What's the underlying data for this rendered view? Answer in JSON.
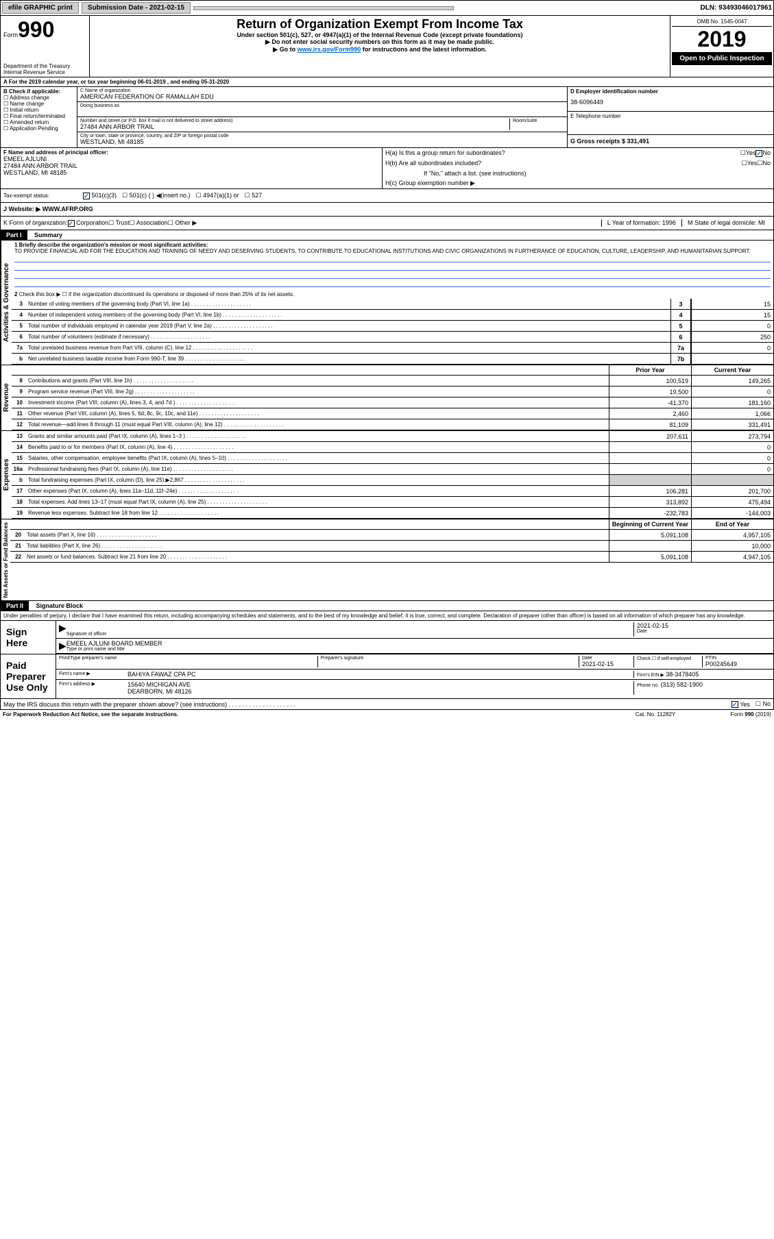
{
  "topbar": {
    "efile": "efile GRAPHIC print",
    "submission_label": "Submission Date - 2021-02-15",
    "dln": "DLN: 93493046017961"
  },
  "header": {
    "form_label": "Form",
    "form_num": "990",
    "dept": "Department of the Treasury",
    "irs": "Internal Revenue Service",
    "title": "Return of Organization Exempt From Income Tax",
    "sub1": "Under section 501(c), 527, or 4947(a)(1) of the Internal Revenue Code (except private foundations)",
    "sub2": "▶ Do not enter social security numbers on this form as it may be made public.",
    "sub3": "▶ Go to www.irs.gov/Form990 for instructions and the latest information.",
    "omb": "OMB No. 1545-0047",
    "year": "2019",
    "open": "Open to Public Inspection"
  },
  "period": "A For the 2019 calendar year, or tax year beginning 06-01-2019    , and ending 05-31-2020",
  "boxB": {
    "label": "B Check if applicable:",
    "items": [
      "Address change",
      "Name change",
      "Initial return",
      "Final return/terminated",
      "Amended return",
      "Application Pending"
    ]
  },
  "boxC": {
    "name_label": "C Name of organization",
    "name": "AMERICAN FEDERATION OF RAMALLAH EDU",
    "dba_label": "Doing business as",
    "addr_label": "Number and street (or P.O. box if mail is not delivered to street address)",
    "room_label": "Room/suite",
    "street": "27484 ANN ARBOR TRAIL",
    "city_label": "City or town, state or province, country, and ZIP or foreign postal code",
    "city": "WESTLAND, MI  48185"
  },
  "boxD": {
    "label": "D Employer identification number",
    "val": "38-6096449"
  },
  "boxE": {
    "label": "E Telephone number"
  },
  "boxG": {
    "label": "G Gross receipts $ 331,491"
  },
  "boxF": {
    "label": "F  Name and address of principal officer:",
    "name": "EMEEL AJLUNI",
    "street": "27484 ANN ARBOR TRAIL",
    "city": "WESTLAND, MI  48185"
  },
  "boxH": {
    "a": "H(a)  Is this a group return for subordinates?",
    "b": "H(b)  Are all subordinates included?",
    "b_note": "If \"No,\" attach a list. (see instructions)",
    "c": "H(c)  Group exemption number ▶",
    "yes": "Yes",
    "no": "No"
  },
  "boxI": {
    "label": "Tax-exempt status:",
    "opts": [
      "501(c)(3)",
      "501(c) (  ) ◀(insert no.)",
      "4947(a)(1) or",
      "527"
    ]
  },
  "boxJ": {
    "label": "J  Website: ▶",
    "val": "WWW.AFRP.ORG"
  },
  "boxK": {
    "label": "K Form of organization:",
    "opts": [
      "Corporation",
      "Trust",
      "Association",
      "Other ▶"
    ]
  },
  "boxL": {
    "label": "L Year of formation: 1996"
  },
  "boxM": {
    "label": "M State of legal domicile: MI"
  },
  "part1": {
    "header": "Part I",
    "title": "Summary",
    "line1": "1 Briefly describe the organization's mission or most significant activities:",
    "mission": "TO PROVIDE FINANCIAL AID FOR THE EDUCATION AND TRAINING OF NEEDY AND DESERVING STUDENTS, TO CONTRIBUTE TO EDUCATIONAL INSTITUTIONS AND CIVIC ORGANIZATIONS IN FURTHERANCE OF EDUCATION, CULTURE, LEADERSHIP, AND HUMANITARIAN SUPPORT.",
    "line2": "Check this box ▶ ☐ if the organization discontinued its operations or disposed of more than 25% of its net assets.",
    "rows_ag": [
      {
        "n": "3",
        "d": "Number of voting members of the governing body (Part VI, line 1a)",
        "b": "3",
        "v": "15"
      },
      {
        "n": "4",
        "d": "Number of independent voting members of the governing body (Part VI, line 1b)",
        "b": "4",
        "v": "15"
      },
      {
        "n": "5",
        "d": "Total number of individuals employed in calendar year 2019 (Part V, line 2a)",
        "b": "5",
        "v": "0"
      },
      {
        "n": "6",
        "d": "Total number of volunteers (estimate if necessary)",
        "b": "6",
        "v": "250"
      },
      {
        "n": "7a",
        "d": "Total unrelated business revenue from Part VIII, column (C), line 12",
        "b": "7a",
        "v": "0"
      },
      {
        "n": "b",
        "d": "Net unrelated business taxable income from Form 990-T, line 39",
        "b": "7b",
        "v": ""
      }
    ],
    "prior_label": "Prior Year",
    "current_label": "Current Year",
    "rows_rev": [
      {
        "n": "8",
        "d": "Contributions and grants (Part VIII, line 1h)",
        "p": "100,519",
        "c": "149,265"
      },
      {
        "n": "9",
        "d": "Program service revenue (Part VIII, line 2g)",
        "p": "19,500",
        "c": "0"
      },
      {
        "n": "10",
        "d": "Investment income (Part VIII, column (A), lines 3, 4, and 7d )",
        "p": "-41,370",
        "c": "181,160"
      },
      {
        "n": "11",
        "d": "Other revenue (Part VIII, column (A), lines 5, 6d, 8c, 9c, 10c, and 11e)",
        "p": "2,460",
        "c": "1,066"
      },
      {
        "n": "12",
        "d": "Total revenue—add lines 8 through 11 (must equal Part VIII, column (A), line 12)",
        "p": "81,109",
        "c": "331,491"
      }
    ],
    "rows_exp": [
      {
        "n": "13",
        "d": "Grants and similar amounts paid (Part IX, column (A), lines 1–3 )",
        "p": "207,611",
        "c": "273,794"
      },
      {
        "n": "14",
        "d": "Benefits paid to or for members (Part IX, column (A), line 4)",
        "p": "",
        "c": "0"
      },
      {
        "n": "15",
        "d": "Salaries, other compensation, employee benefits (Part IX, column (A), lines 5–10)",
        "p": "",
        "c": "0"
      },
      {
        "n": "16a",
        "d": "Professional fundraising fees (Part IX, column (A), line 11e)",
        "p": "",
        "c": "0"
      },
      {
        "n": "b",
        "d": "Total fundraising expenses (Part IX, column (D), line 25) ▶2,867",
        "p": "gray",
        "c": "gray"
      },
      {
        "n": "17",
        "d": "Other expenses (Part IX, column (A), lines 11a–11d, 11f–24e)",
        "p": "106,281",
        "c": "201,700"
      },
      {
        "n": "18",
        "d": "Total expenses. Add lines 13–17 (must equal Part IX, column (A), line 25)",
        "p": "313,892",
        "c": "475,494"
      },
      {
        "n": "19",
        "d": "Revenue less expenses. Subtract line 18 from line 12",
        "p": "-232,783",
        "c": "-144,003"
      }
    ],
    "begin_label": "Beginning of Current Year",
    "end_label": "End of Year",
    "rows_net": [
      {
        "n": "20",
        "d": "Total assets (Part X, line 16)",
        "p": "5,091,108",
        "c": "4,957,105"
      },
      {
        "n": "21",
        "d": "Total liabilities (Part X, line 26)",
        "p": "",
        "c": "10,000"
      },
      {
        "n": "22",
        "d": "Net assets or fund balances. Subtract line 21 from line 20",
        "p": "5,091,108",
        "c": "4,947,105"
      }
    ]
  },
  "part2": {
    "header": "Part II",
    "title": "Signature Block",
    "penalty": "Under penalties of perjury, I declare that I have examined this return, including accompanying schedules and statements, and to the best of my knowledge and belief, it is true, correct, and complete. Declaration of preparer (other than officer) is based on all information of which preparer has any knowledge.",
    "sign_here": "Sign Here",
    "sig_officer": "Signature of officer",
    "date": "Date",
    "date_val": "2021-02-15",
    "name_title": "EMEEL AJLUNI BOARD MEMBER",
    "type_label": "Type or print name and title",
    "paid": "Paid Preparer Use Only",
    "prep_name": "Print/Type preparer's name",
    "prep_sig": "Preparer's signature",
    "prep_date": "Date",
    "prep_date_val": "2021-02-15",
    "check_se": "Check ☐ if self-employed",
    "ptin": "PTIN",
    "ptin_val": "P00245649",
    "firm_name_label": "Firm's name    ▶",
    "firm_name": "BAHIYA FAWAZ CPA PC",
    "firm_ein_label": "Firm's EIN ▶",
    "firm_ein": "38-3478405",
    "firm_addr_label": "Firm's address ▶",
    "firm_addr": "15640 MICHIGAN AVE",
    "firm_city": "DEARBORN, MI  48126",
    "phone_label": "Phone no.",
    "phone": "(313) 582-1900",
    "discuss": "May the IRS discuss this return with the preparer shown above? (see instructions)",
    "yes": "Yes",
    "no": "No"
  },
  "footer": {
    "paperwork": "For Paperwork Reduction Act Notice, see the separate instructions.",
    "cat": "Cat. No. 11282Y",
    "form": "Form 990 (2019)"
  },
  "vert_labels": {
    "ag": "Activities & Governance",
    "rev": "Revenue",
    "exp": "Expenses",
    "net": "Net Assets or Fund Balances"
  }
}
